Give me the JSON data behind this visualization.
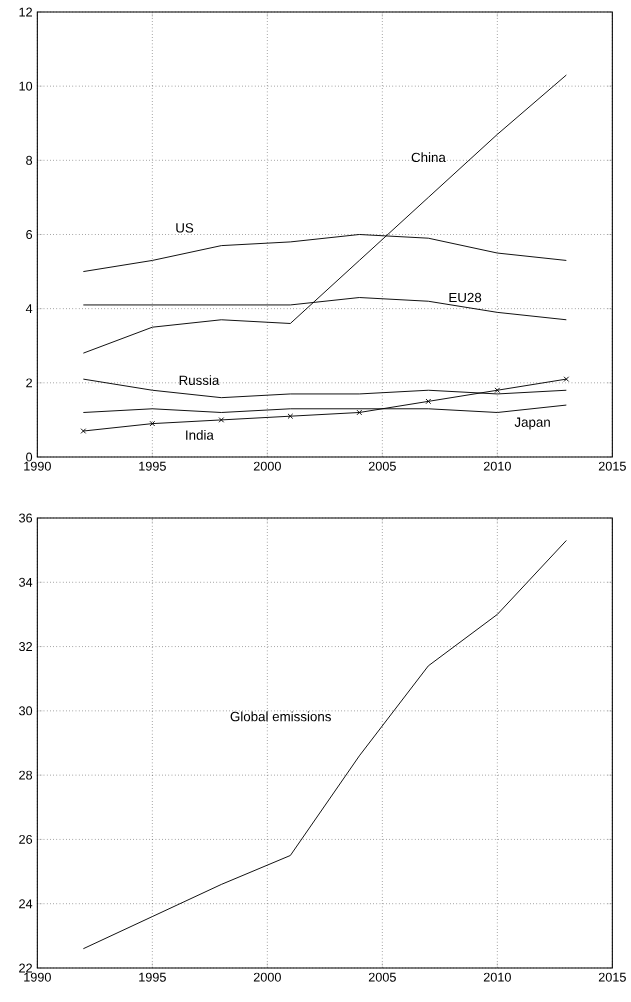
{
  "chart_data": [
    {
      "type": "line",
      "x": [
        1992,
        1995,
        1998,
        2001,
        2004,
        2007,
        2010,
        2013
      ],
      "xlim": [
        1990,
        2015
      ],
      "xticks": [
        1990,
        1995,
        2000,
        2005,
        2010,
        2015
      ],
      "ylim": [
        0,
        12
      ],
      "yticks": [
        0,
        2,
        4,
        6,
        8,
        10,
        12
      ],
      "grid": true,
      "series": [
        {
          "name": "US",
          "color": "#000000",
          "values": [
            5.0,
            5.3,
            5.7,
            5.8,
            6.0,
            5.9,
            5.5,
            5.3
          ]
        },
        {
          "name": "EU28",
          "color": "#000000",
          "values": [
            4.1,
            4.1,
            4.1,
            4.1,
            4.3,
            4.2,
            3.9,
            3.7
          ]
        },
        {
          "name": "China",
          "color": "#000000",
          "values": [
            2.8,
            3.5,
            3.7,
            3.6,
            5.3,
            7.0,
            8.7,
            10.3
          ]
        },
        {
          "name": "Russia",
          "color": "#000000",
          "values": [
            2.1,
            1.8,
            1.6,
            1.7,
            1.7,
            1.8,
            1.7,
            1.8
          ]
        },
        {
          "name": "Japan",
          "color": "#000000",
          "values": [
            1.2,
            1.3,
            1.2,
            1.3,
            1.3,
            1.3,
            1.2,
            1.4
          ]
        },
        {
          "name": "India",
          "color": "#000000",
          "marker": "cross",
          "values": [
            0.7,
            0.9,
            1.0,
            1.1,
            1.2,
            1.5,
            1.8,
            2.1
          ]
        }
      ]
    },
    {
      "type": "line",
      "x": [
        1992,
        1995,
        1998,
        2001,
        2004,
        2007,
        2010,
        2013
      ],
      "xlim": [
        1990,
        2015
      ],
      "xticks": [
        1990,
        1995,
        2000,
        2005,
        2010,
        2015
      ],
      "ylim": [
        22,
        36
      ],
      "yticks": [
        22,
        24,
        26,
        28,
        30,
        32,
        34,
        36
      ],
      "grid": true,
      "series": [
        {
          "name": "Global emissions",
          "color": "#000000",
          "values": [
            22.6,
            23.6,
            24.6,
            25.5,
            28.6,
            31.4,
            33.0,
            35.3
          ]
        }
      ]
    }
  ]
}
